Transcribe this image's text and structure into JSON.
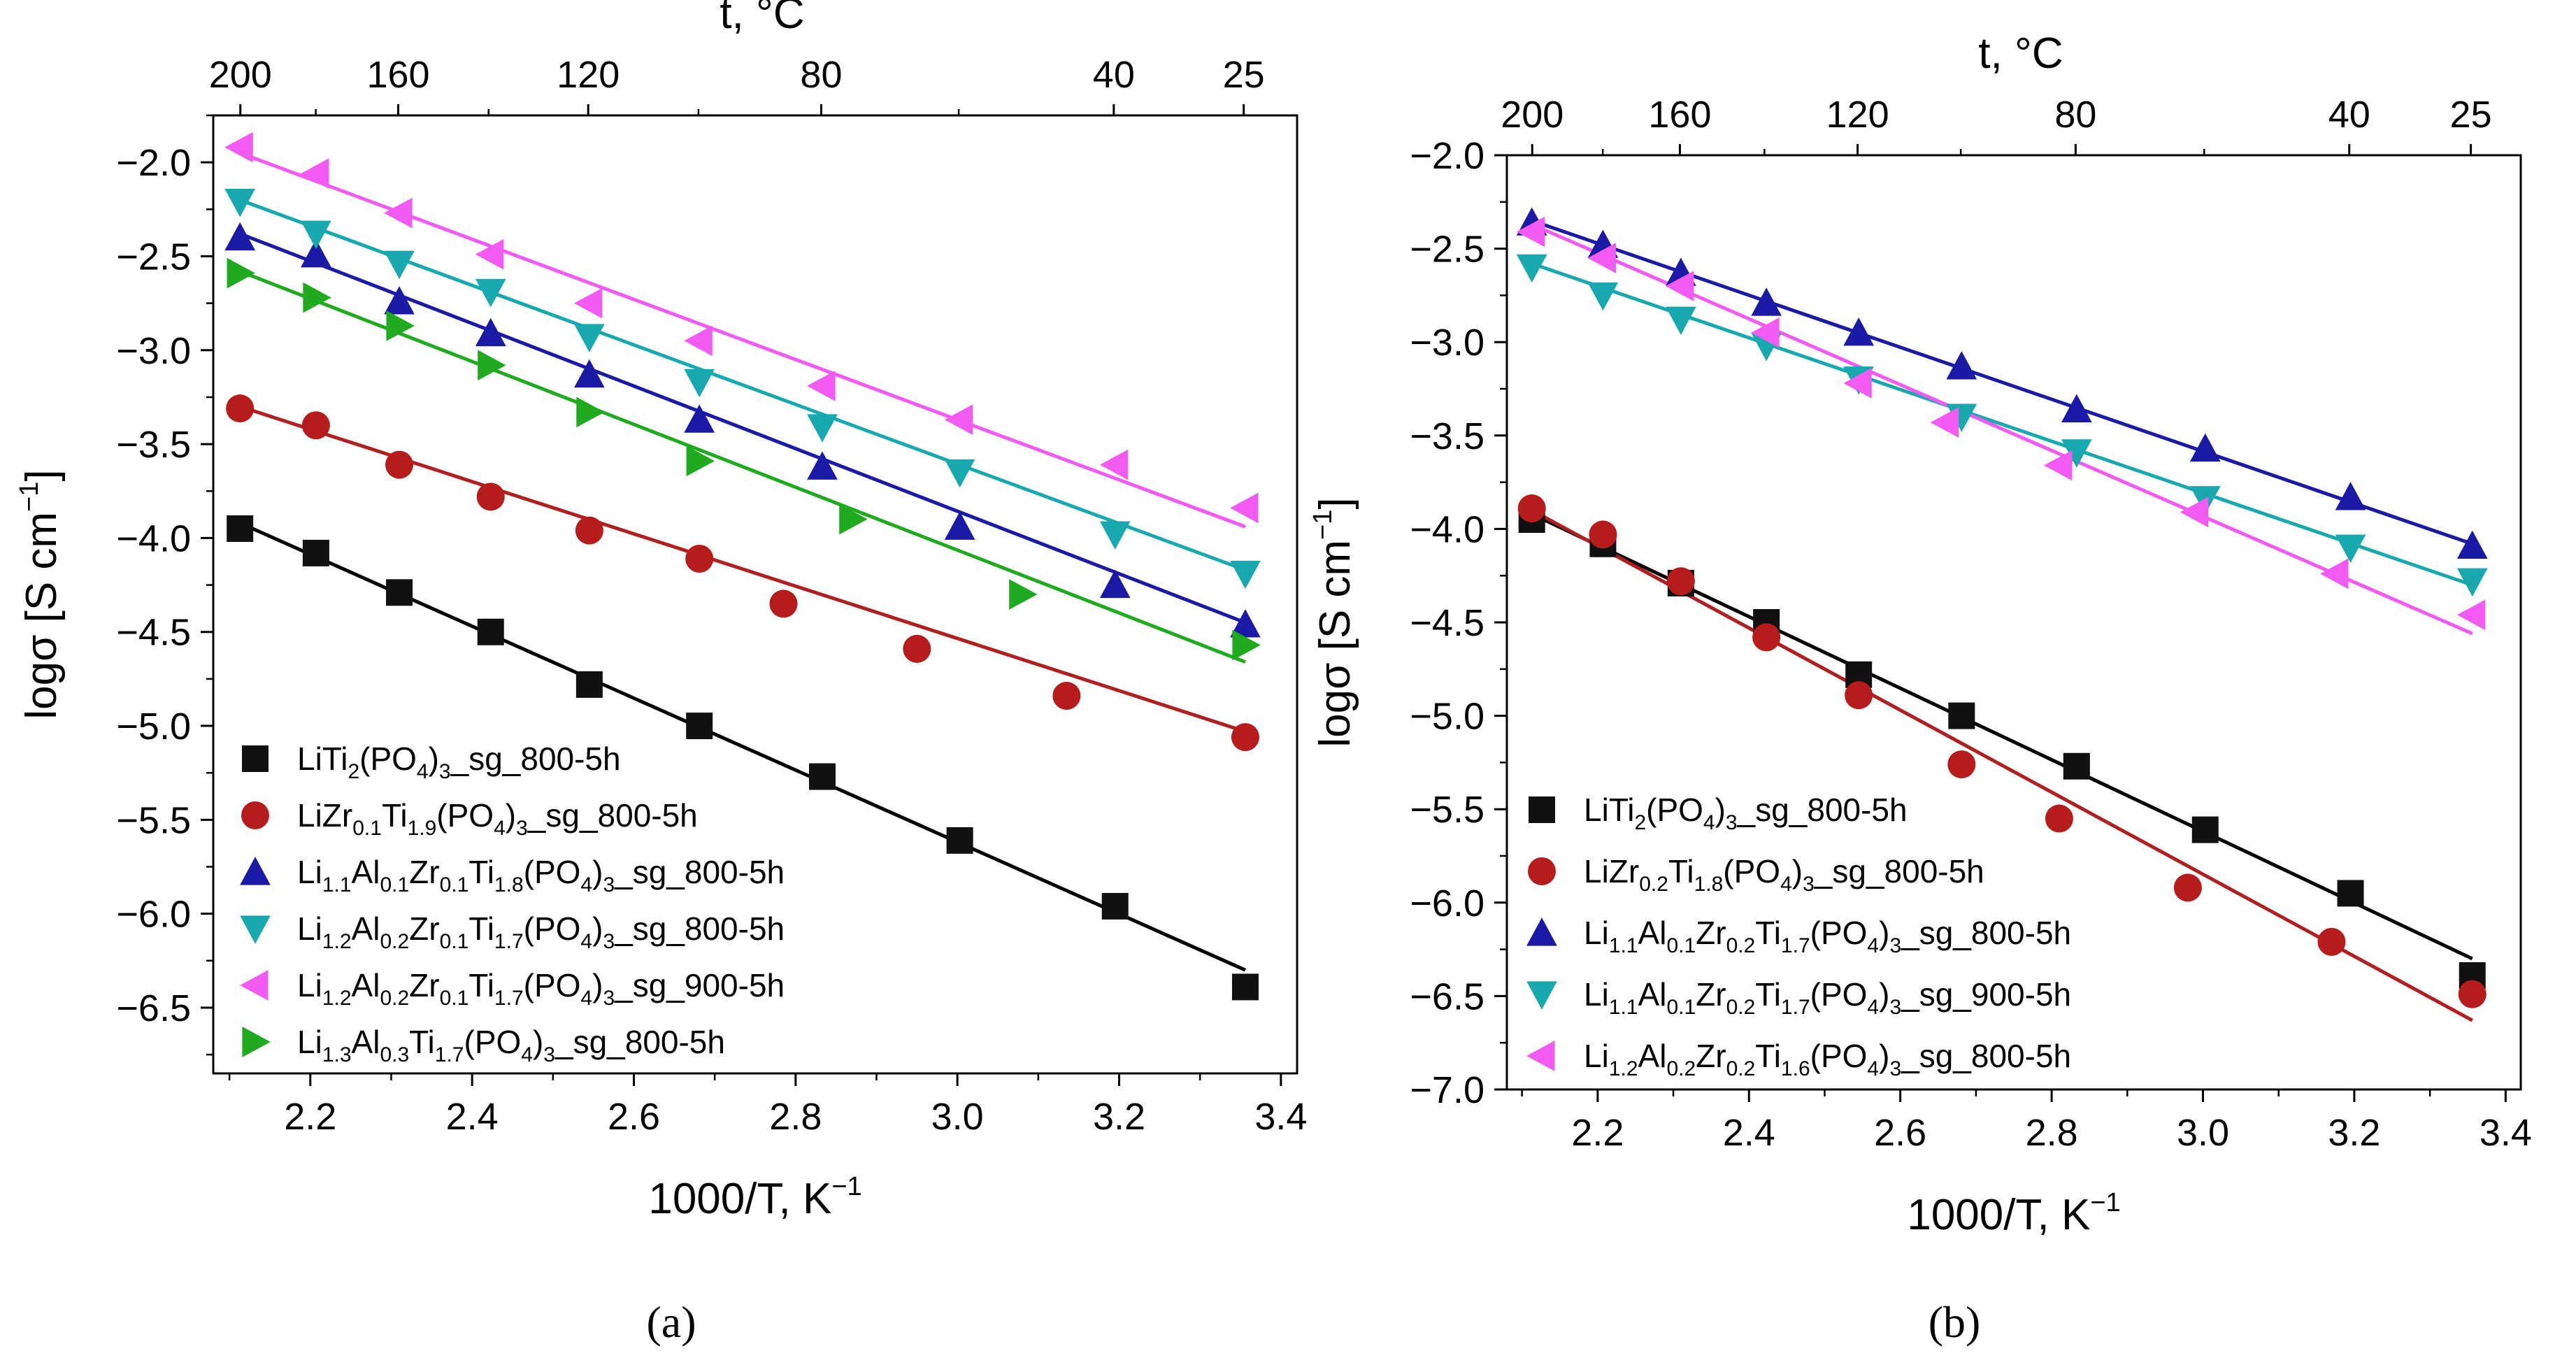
{
  "chart_data": [
    {
      "panel": "a",
      "caption": "(a)",
      "type": "scatter",
      "xlabel": "1000/T, K",
      "xlabel_sup": "−1",
      "ylabel": "logσ [S cm",
      "ylabel_sup": "−1",
      "ylabel_close": "]",
      "top_label": "t, °C",
      "xlim": [
        2.08,
        3.42
      ],
      "ylim": [
        -6.85,
        -1.75
      ],
      "x_ticks": [
        "2.2",
        "2.4",
        "2.6",
        "2.8",
        "3.0",
        "3.2",
        "3.4"
      ],
      "x_tick_values": [
        2.2,
        2.4,
        2.6,
        2.8,
        3.0,
        3.2,
        3.4
      ],
      "y_ticks": [
        "−2.0",
        "−2.5",
        "−3.0",
        "−3.5",
        "−4.0",
        "−4.5",
        "−5.0",
        "−5.5",
        "−6.0",
        "−6.5"
      ],
      "y_tick_values": [
        -2.0,
        -2.5,
        -3.0,
        -3.5,
        -4.0,
        -4.5,
        -5.0,
        -5.5,
        -6.0,
        -6.5
      ],
      "top_ticks": [
        "200",
        "160",
        "120",
        "80",
        "40",
        "25"
      ],
      "top_tick_celsius": [
        200,
        160,
        120,
        80,
        40,
        25
      ],
      "series": [
        {
          "name": "LiTi2(PO4)3_sg_800-5h",
          "label_parts": [
            [
              "Li",
              ""
            ],
            [
              "Ti",
              ""
            ],
            [
              "2",
              "sub"
            ],
            [
              "(PO",
              ""
            ],
            [
              "4",
              "sub"
            ],
            [
              ")",
              ""
            ],
            [
              "3",
              "sub"
            ],
            [
              "_sg_800-5h",
              ""
            ]
          ],
          "marker": "square",
          "color": "#111111",
          "line_color": "#000000",
          "x": [
            2.113,
            2.207,
            2.31,
            2.423,
            2.545,
            2.681,
            2.833,
            3.003,
            3.195,
            3.356
          ],
          "y": [
            -3.95,
            -4.08,
            -4.29,
            -4.5,
            -4.78,
            -5.0,
            -5.27,
            -5.61,
            -5.96,
            -6.39
          ],
          "fit": [
            [
              2.113,
              -3.92
            ],
            [
              3.356,
              -6.3
            ]
          ]
        },
        {
          "name": "LiZr0.1Ti1.9(PO4)3_sg_800-5h",
          "label_parts": [
            [
              "LiZr",
              ""
            ],
            [
              "0.1",
              "sub"
            ],
            [
              "Ti",
              ""
            ],
            [
              "1.9",
              "sub"
            ],
            [
              "(PO",
              ""
            ],
            [
              "4",
              "sub"
            ],
            [
              ")",
              ""
            ],
            [
              "3",
              "sub"
            ],
            [
              "_sg_800-5h",
              ""
            ]
          ],
          "marker": "circle",
          "color": "#b71c1c",
          "line_color": "#b02020",
          "x": [
            2.113,
            2.207,
            2.31,
            2.423,
            2.545,
            2.681,
            2.785,
            2.95,
            3.135,
            3.356
          ],
          "y": [
            -3.31,
            -3.4,
            -3.61,
            -3.78,
            -3.96,
            -4.11,
            -4.35,
            -4.59,
            -4.84,
            -5.06
          ],
          "fit": [
            [
              2.113,
              -3.3
            ],
            [
              3.356,
              -5.03
            ]
          ]
        },
        {
          "name": "Li1.1Al0.1Zr0.1Ti1.8(PO4)3_sg_800-5h",
          "label_parts": [
            [
              "Li",
              ""
            ],
            [
              "1.1",
              "sub"
            ],
            [
              "Al",
              ""
            ],
            [
              "0.1",
              "sub"
            ],
            [
              "Zr",
              ""
            ],
            [
              "0.1",
              "sub"
            ],
            [
              "Ti",
              ""
            ],
            [
              "1.8",
              "sub"
            ],
            [
              "(PO",
              ""
            ],
            [
              "4",
              "sub"
            ],
            [
              ")",
              ""
            ],
            [
              "3",
              "sub"
            ],
            [
              "_sg_800-5h",
              ""
            ]
          ],
          "marker": "triangle-up",
          "color": "#1a1aa6",
          "line_color": "#1a1aa6",
          "x": [
            2.113,
            2.207,
            2.31,
            2.423,
            2.545,
            2.681,
            2.833,
            3.003,
            3.195,
            3.356
          ],
          "y": [
            -2.4,
            -2.49,
            -2.74,
            -2.91,
            -3.13,
            -3.37,
            -3.62,
            -3.94,
            -4.25,
            -4.46
          ],
          "fit": [
            [
              2.113,
              -2.38
            ],
            [
              3.356,
              -4.45
            ]
          ]
        },
        {
          "name": "Li1.2Al0.2Zr0.1Ti1.7(PO4)3_sg_800-5h",
          "label_parts": [
            [
              "Li",
              ""
            ],
            [
              "1.2",
              "sub"
            ],
            [
              "Al",
              ""
            ],
            [
              "0.2",
              "sub"
            ],
            [
              "Zr",
              ""
            ],
            [
              "0.1",
              "sub"
            ],
            [
              "Ti",
              ""
            ],
            [
              "1.7",
              "sub"
            ],
            [
              "(PO",
              ""
            ],
            [
              "4",
              "sub"
            ],
            [
              ")",
              ""
            ],
            [
              "3",
              "sub"
            ],
            [
              "_sg_800-5h",
              ""
            ]
          ],
          "marker": "triangle-down",
          "color": "#17a9ad",
          "line_color": "#17a9ad",
          "x": [
            2.113,
            2.207,
            2.31,
            2.423,
            2.545,
            2.681,
            2.833,
            3.003,
            3.195,
            3.356
          ],
          "y": [
            -2.21,
            -2.38,
            -2.54,
            -2.69,
            -2.93,
            -3.17,
            -3.41,
            -3.65,
            -3.98,
            -4.19
          ],
          "fit": [
            [
              2.113,
              -2.2
            ],
            [
              3.356,
              -4.17
            ]
          ]
        },
        {
          "name": "Li1.2Al0.2Zr0.1Ti1.7(PO4)3_sg_900-5h",
          "label_parts": [
            [
              "Li",
              ""
            ],
            [
              "1.2",
              "sub"
            ],
            [
              "Al",
              ""
            ],
            [
              "0.2",
              "sub"
            ],
            [
              "Zr",
              ""
            ],
            [
              "0.1",
              "sub"
            ],
            [
              "Ti",
              ""
            ],
            [
              "1.7",
              "sub"
            ],
            [
              "(PO",
              ""
            ],
            [
              "4",
              "sub"
            ],
            [
              ")",
              ""
            ],
            [
              "3",
              "sub"
            ],
            [
              "_sg_900-5h",
              ""
            ]
          ],
          "marker": "triangle-left",
          "color": "#f25bf2",
          "line_color": "#f25bf2",
          "x": [
            2.113,
            2.207,
            2.31,
            2.423,
            2.545,
            2.681,
            2.833,
            3.003,
            3.195,
            3.356
          ],
          "y": [
            -1.92,
            -2.06,
            -2.27,
            -2.49,
            -2.75,
            -2.95,
            -3.19,
            -3.37,
            -3.61,
            -3.84
          ],
          "fit": [
            [
              2.113,
              -1.95
            ],
            [
              3.356,
              -3.94
            ]
          ]
        },
        {
          "name": "Li1.3Al0.3Ti1.7(PO4)3_sg_800-5h",
          "label_parts": [
            [
              "Li",
              ""
            ],
            [
              "1.3",
              "sub"
            ],
            [
              "Al",
              ""
            ],
            [
              "0.3",
              "sub"
            ],
            [
              "Ti",
              ""
            ],
            [
              "1.7",
              "sub"
            ],
            [
              "(PO",
              ""
            ],
            [
              "4",
              "sub"
            ],
            [
              ")",
              ""
            ],
            [
              "3",
              "sub"
            ],
            [
              "_sg_800-5h",
              ""
            ]
          ],
          "marker": "triangle-right",
          "color": "#1faa1f",
          "line_color": "#1faa1f",
          "x": [
            2.113,
            2.207,
            2.31,
            2.423,
            2.545,
            2.681,
            2.87,
            3.08,
            3.356
          ],
          "y": [
            -2.59,
            -2.72,
            -2.87,
            -3.08,
            -3.33,
            -3.59,
            -3.9,
            -4.3,
            -4.57
          ],
          "fit": [
            [
              2.113,
              -2.58
            ],
            [
              3.356,
              -4.66
            ]
          ]
        }
      ]
    },
    {
      "panel": "b",
      "caption": "(b)",
      "type": "scatter",
      "xlabel": "1000/T, K",
      "xlabel_sup": "−1",
      "ylabel": "logσ [S cm",
      "ylabel_sup": "−1",
      "ylabel_close": "]",
      "top_label": "t, °C",
      "xlim": [
        2.08,
        3.42
      ],
      "ylim": [
        -7.0,
        -2.0
      ],
      "x_ticks": [
        "2.2",
        "2.4",
        "2.6",
        "2.8",
        "3.0",
        "3.2",
        "3.4"
      ],
      "x_tick_values": [
        2.2,
        2.4,
        2.6,
        2.8,
        3.0,
        3.2,
        3.4
      ],
      "y_ticks": [
        "−2.0",
        "−2.5",
        "−3.0",
        "−3.5",
        "−4.0",
        "−4.5",
        "−5.0",
        "−5.5",
        "−6.0",
        "−6.5",
        "−7.0"
      ],
      "y_tick_values": [
        -2.0,
        -2.5,
        -3.0,
        -3.5,
        -4.0,
        -4.5,
        -5.0,
        -5.5,
        -6.0,
        -6.5,
        -7.0
      ],
      "top_ticks": [
        "200",
        "160",
        "120",
        "80",
        "40",
        "25"
      ],
      "top_tick_celsius": [
        200,
        160,
        120,
        80,
        40,
        25
      ],
      "series": [
        {
          "name": "LiTi2(PO4)3_sg_800-5h",
          "label_parts": [
            [
              "Li",
              ""
            ],
            [
              "Ti",
              ""
            ],
            [
              "2",
              "sub"
            ],
            [
              "(PO",
              ""
            ],
            [
              "4",
              "sub"
            ],
            [
              ")",
              ""
            ],
            [
              "3",
              "sub"
            ],
            [
              "_sg_800-5h",
              ""
            ]
          ],
          "marker": "square",
          "color": "#111111",
          "line_color": "#000000",
          "x": [
            2.113,
            2.207,
            2.31,
            2.423,
            2.545,
            2.681,
            2.833,
            3.003,
            3.195,
            3.356
          ],
          "y": [
            -3.95,
            -4.08,
            -4.29,
            -4.5,
            -4.78,
            -5.0,
            -5.27,
            -5.61,
            -5.95,
            -6.39
          ],
          "fit": [
            [
              2.113,
              -3.92
            ],
            [
              3.356,
              -6.3
            ]
          ]
        },
        {
          "name": "LiZr0.2Ti1.8(PO4)3_sg_800-5h",
          "label_parts": [
            [
              "LiZr",
              ""
            ],
            [
              "0.2",
              "sub"
            ],
            [
              "Ti",
              ""
            ],
            [
              "1.8",
              "sub"
            ],
            [
              "(PO",
              ""
            ],
            [
              "4",
              "sub"
            ],
            [
              ")",
              ""
            ],
            [
              "3",
              "sub"
            ],
            [
              "_sg_800-5h",
              ""
            ]
          ],
          "marker": "circle",
          "color": "#b71c1c",
          "line_color": "#b02020",
          "x": [
            2.113,
            2.207,
            2.31,
            2.423,
            2.545,
            2.681,
            2.81,
            2.98,
            3.17,
            3.356
          ],
          "y": [
            -3.89,
            -4.03,
            -4.28,
            -4.58,
            -4.89,
            -5.26,
            -5.55,
            -5.92,
            -6.21,
            -6.49
          ],
          "fit": [
            [
              2.113,
              -3.9
            ],
            [
              3.356,
              -6.63
            ]
          ]
        },
        {
          "name": "Li1.1Al0.1Zr0.2Ti1.7(PO4)3_sg_800-5h",
          "label_parts": [
            [
              "Li",
              ""
            ],
            [
              "1.1",
              "sub"
            ],
            [
              "Al",
              ""
            ],
            [
              "0.1",
              "sub"
            ],
            [
              "Zr",
              ""
            ],
            [
              "0.2",
              "sub"
            ],
            [
              "Ti",
              ""
            ],
            [
              "1.7",
              "sub"
            ],
            [
              "(PO",
              ""
            ],
            [
              "4",
              "sub"
            ],
            [
              ")",
              ""
            ],
            [
              "3",
              "sub"
            ],
            [
              "_sg_800-5h",
              ""
            ]
          ],
          "marker": "triangle-up",
          "color": "#1a1aa6",
          "line_color": "#1a1aa6",
          "x": [
            2.113,
            2.207,
            2.31,
            2.423,
            2.545,
            2.681,
            2.833,
            3.003,
            3.195,
            3.356
          ],
          "y": [
            -2.36,
            -2.48,
            -2.63,
            -2.79,
            -2.95,
            -3.13,
            -3.36,
            -3.57,
            -3.83,
            -4.09
          ],
          "fit": [
            [
              2.113,
              -2.35
            ],
            [
              3.356,
              -4.08
            ]
          ]
        },
        {
          "name": "Li1.1Al0.1Zr0.2Ti1.7(PO4)3_sg_900-5h",
          "label_parts": [
            [
              "Li",
              ""
            ],
            [
              "1.1",
              "sub"
            ],
            [
              "Al",
              ""
            ],
            [
              "0.1",
              "sub"
            ],
            [
              "Zr",
              ""
            ],
            [
              "0.2",
              "sub"
            ],
            [
              "Ti",
              ""
            ],
            [
              "1.7",
              "sub"
            ],
            [
              "(PO",
              ""
            ],
            [
              "4",
              "sub"
            ],
            [
              ")",
              ""
            ],
            [
              "3",
              "sub"
            ],
            [
              "_sg_900-5h",
              ""
            ]
          ],
          "marker": "triangle-down",
          "color": "#17a9ad",
          "line_color": "#17a9ad",
          "x": [
            2.113,
            2.207,
            2.31,
            2.423,
            2.545,
            2.681,
            2.833,
            3.003,
            3.195,
            3.356
          ],
          "y": [
            -2.6,
            -2.75,
            -2.88,
            -3.02,
            -3.2,
            -3.4,
            -3.59,
            -3.84,
            -4.1,
            -4.28
          ],
          "fit": [
            [
              2.113,
              -2.58
            ],
            [
              3.356,
              -4.3
            ]
          ]
        },
        {
          "name": "Li1.2Al0.2Zr0.2Ti1.6(PO4)3_sg_800-5h",
          "label_parts": [
            [
              "Li",
              ""
            ],
            [
              "1.2",
              "sub"
            ],
            [
              "Al",
              ""
            ],
            [
              "0.2",
              "sub"
            ],
            [
              "Zr",
              ""
            ],
            [
              "0.2",
              "sub"
            ],
            [
              "Ti",
              ""
            ],
            [
              "1.6",
              "sub"
            ],
            [
              "(PO",
              ""
            ],
            [
              "4",
              "sub"
            ],
            [
              ")",
              ""
            ],
            [
              "3",
              "sub"
            ],
            [
              "_sg_800-5h",
              ""
            ]
          ],
          "marker": "triangle-left",
          "color": "#f25bf2",
          "line_color": "#f25bf2",
          "x": [
            2.113,
            2.207,
            2.31,
            2.423,
            2.545,
            2.66,
            2.81,
            2.99,
            3.175,
            3.356
          ],
          "y": [
            -2.41,
            -2.55,
            -2.7,
            -2.95,
            -3.22,
            -3.43,
            -3.66,
            -3.91,
            -4.24,
            -4.46
          ],
          "fit": [
            [
              2.113,
              -2.37
            ],
            [
              3.356,
              -4.56
            ]
          ]
        }
      ]
    }
  ]
}
